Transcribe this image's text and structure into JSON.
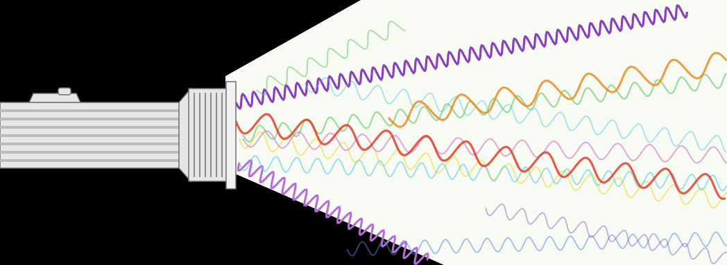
{
  "colors": {
    "background": "#000000",
    "beam": "#f7fbf4",
    "flashlight_body": "#e6e6e6",
    "flashlight_stripe": "#bcbcbc",
    "flashlight_outline": "#6e6e6e"
  },
  "waves": [
    {
      "name": "violet",
      "color": "#8a3fc0"
    },
    {
      "name": "purple",
      "color": "#b56bd8"
    },
    {
      "name": "magenta",
      "color": "#d070c0"
    },
    {
      "name": "red",
      "color": "#e0402a"
    },
    {
      "name": "orange",
      "color": "#f08a1c"
    },
    {
      "name": "yellow",
      "color": "#eedd33"
    },
    {
      "name": "green",
      "color": "#5fc45a"
    },
    {
      "name": "cyan",
      "color": "#4fc8e0"
    },
    {
      "name": "blue",
      "color": "#5a8ad8"
    },
    {
      "name": "indigo",
      "color": "#6a50b8"
    }
  ]
}
